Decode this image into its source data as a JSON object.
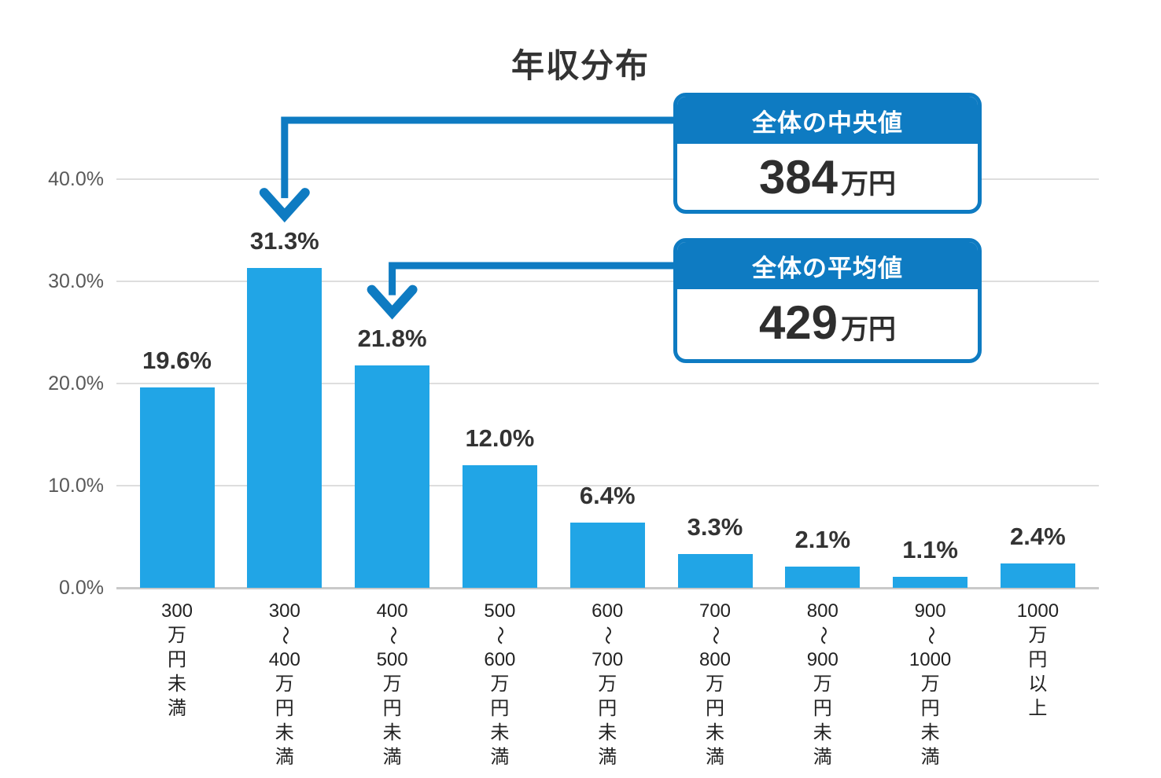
{
  "title": "年収分布",
  "chart_data": {
    "type": "bar",
    "title": "年収分布",
    "categories": [
      "300万円未満",
      "300〜400万円未満",
      "400〜500万円未満",
      "500〜600万円未満",
      "600〜700万円未満",
      "700〜800万円未満",
      "800〜900万円未満",
      "900〜1000万円未満",
      "1000万円以上"
    ],
    "values": [
      19.6,
      31.3,
      21.8,
      12.0,
      6.4,
      3.3,
      2.1,
      1.1,
      2.4
    ],
    "value_labels": [
      "19.6%",
      "31.3%",
      "21.8%",
      "12.0%",
      "6.4%",
      "3.3%",
      "2.1%",
      "1.1%",
      "2.4%"
    ],
    "xlabel": "",
    "ylabel": "",
    "ylim": [
      0,
      40
    ],
    "yticks": [
      0,
      10,
      20,
      30,
      40
    ],
    "ytick_labels": [
      "0.0%",
      "10.0%",
      "20.0%",
      "30.0%",
      "40.0%"
    ],
    "grid": true,
    "legend": "none",
    "bar_color": "#21a5e6",
    "accent_color": "#0e7bc2"
  },
  "annotations": {
    "median": {
      "label": "全体の中央値",
      "value": "384",
      "unit": "万円",
      "target_category": "300〜400万円未満",
      "target_category_index": 1
    },
    "average": {
      "label": "全体の平均値",
      "value": "429",
      "unit": "万円",
      "target_category": "400〜500万円未満",
      "target_category_index": 2
    }
  }
}
